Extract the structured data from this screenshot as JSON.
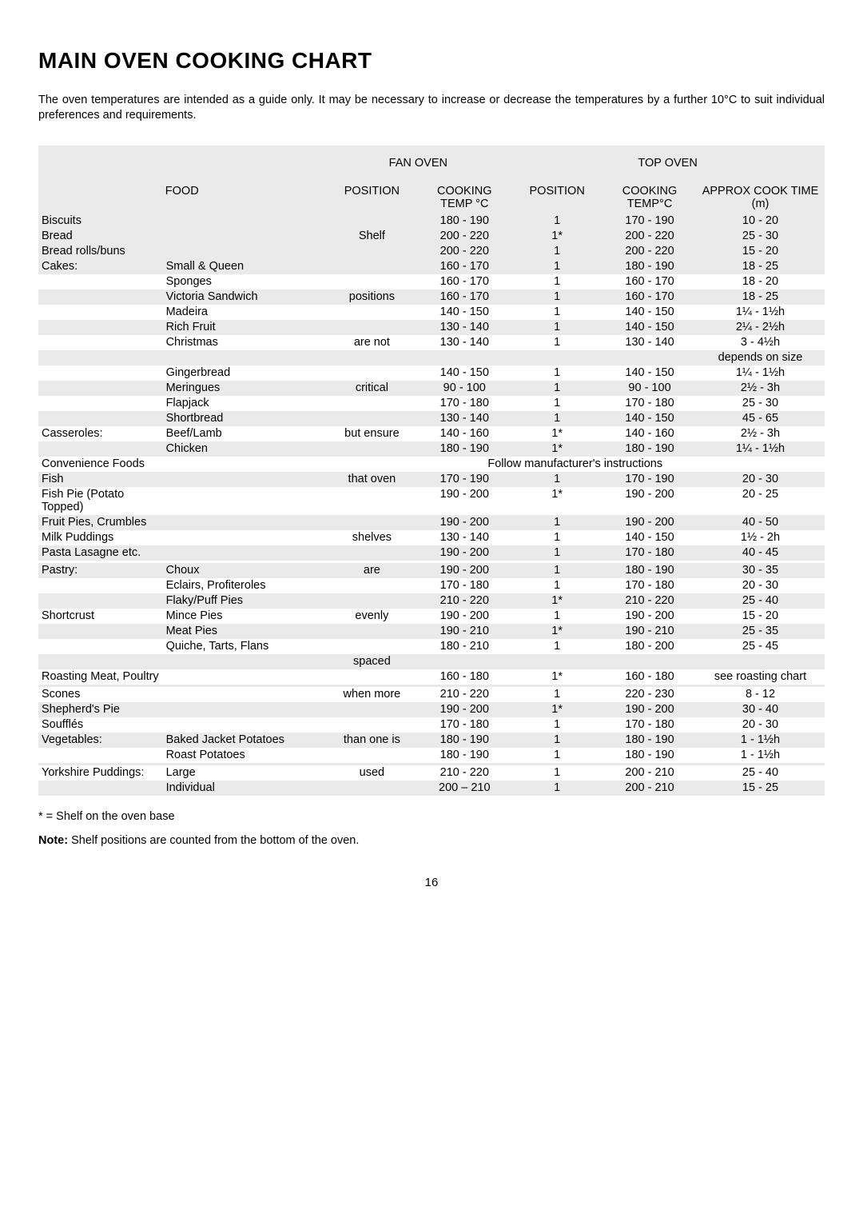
{
  "title": "MAIN OVEN COOKING CHART",
  "intro": "The oven temperatures are intended as a guide only.  It may be necessary to increase or decrease the temperatures by a further 10°C to suit individual preferences and requirements.",
  "headers": {
    "fan": "FAN OVEN",
    "top": "TOP OVEN",
    "food": "FOOD",
    "pos": "POSITION",
    "cooktemp": "COOKING TEMP °C",
    "cooktemp2": "COOKING TEMP°C",
    "approx": "APPROX COOK TIME (m)"
  },
  "position_words": [
    "Shelf",
    "",
    "positions",
    "",
    "",
    "are not",
    "",
    "",
    "critical",
    "",
    "",
    "but ensure",
    "",
    "",
    "that oven",
    "",
    "",
    "shelves",
    "",
    "",
    "are",
    "",
    "",
    "evenly",
    "",
    "",
    "spaced",
    "",
    "when more",
    "",
    "",
    "than one is",
    "",
    "",
    "used",
    ""
  ],
  "rows": [
    {
      "shade": true,
      "food": "Biscuits",
      "sub": "",
      "pos": "",
      "fan": "180 - 190",
      "tpos": "1",
      "ttemp": "170 - 190",
      "time": "10 - 20"
    },
    {
      "shade": true,
      "food": "Bread",
      "sub": "",
      "pos": "Shelf",
      "fan": "200 - 220",
      "tpos": "1*",
      "ttemp": "200 - 220",
      "time": "25 - 30"
    },
    {
      "shade": true,
      "food": "Bread rolls/buns",
      "sub": "",
      "pos": "",
      "fan": "200 - 220",
      "tpos": "1",
      "ttemp": "200 - 220",
      "time": "15 - 20"
    },
    {
      "shade": true,
      "food": "Cakes:",
      "sub": "Small & Queen",
      "pos": "",
      "fan": "160 - 170",
      "tpos": "1",
      "ttemp": "180 - 190",
      "time": "18 - 25"
    },
    {
      "shade": false,
      "food": "",
      "sub": "Sponges",
      "pos": "",
      "fan": "160 - 170",
      "tpos": "1",
      "ttemp": "160 - 170",
      "time": "18 - 20"
    },
    {
      "shade": true,
      "food": "",
      "sub": "Victoria Sandwich",
      "pos": "positions",
      "fan": "160 - 170",
      "tpos": "1",
      "ttemp": "160 - 170",
      "time": "18 - 25"
    },
    {
      "shade": false,
      "food": "",
      "sub": "Madeira",
      "pos": "",
      "fan": "140 - 150",
      "tpos": "1",
      "ttemp": "140 - 150",
      "time": "1¼ - 1½h"
    },
    {
      "shade": true,
      "food": "",
      "sub": "Rich Fruit",
      "pos": "",
      "fan": "130 - 140",
      "tpos": "1",
      "ttemp": "140 - 150",
      "time": "2¼ - 2½h"
    },
    {
      "shade": false,
      "food": "",
      "sub": "Christmas",
      "pos": "are not",
      "fan": "130 - 140",
      "tpos": "1",
      "ttemp": "130 - 140",
      "time": "3 - 4½h"
    },
    {
      "shade": true,
      "food": "",
      "sub": "",
      "pos": "",
      "fan": "",
      "tpos": "",
      "ttemp": "",
      "time": "depends on size"
    },
    {
      "shade": false,
      "food": "",
      "sub": "Gingerbread",
      "pos": "",
      "fan": "140 - 150",
      "tpos": "1",
      "ttemp": "140 - 150",
      "time": "1¼ - 1½h"
    },
    {
      "shade": true,
      "food": "",
      "sub": "Meringues",
      "pos": "critical",
      "fan": "90 - 100",
      "tpos": "1",
      "ttemp": "90 - 100",
      "time": "2½ - 3h"
    },
    {
      "shade": false,
      "food": "",
      "sub": "Flapjack",
      "pos": "",
      "fan": "170 - 180",
      "tpos": "1",
      "ttemp": "170 - 180",
      "time": "25 - 30"
    },
    {
      "shade": true,
      "food": "",
      "sub": "Shortbread",
      "pos": "",
      "fan": "130 - 140",
      "tpos": "1",
      "ttemp": "140 - 150",
      "time": "45 - 65"
    },
    {
      "shade": false,
      "food": "Casseroles:",
      "sub": "Beef/Lamb",
      "pos": "but ensure",
      "fan": "140 - 160",
      "tpos": "1*",
      "ttemp": "140 - 160",
      "time": "2½ - 3h"
    },
    {
      "shade": true,
      "food": "",
      "sub": "Chicken",
      "pos": "",
      "fan": "180 - 190",
      "tpos": "1*",
      "ttemp": "180 - 190",
      "time": "1¼ - 1½h"
    },
    {
      "shade": false,
      "food": "Convenience Foods",
      "sub": "",
      "pos": "",
      "fan": "",
      "tpos": "",
      "ttemp": "",
      "time": "",
      "span": "Follow manufacturer's instructions"
    },
    {
      "shade": true,
      "food": "Fish",
      "sub": "",
      "pos": "that oven",
      "fan": "170 - 190",
      "tpos": "1",
      "ttemp": "170 - 190",
      "time": "20 - 30"
    },
    {
      "shade": false,
      "food": "Fish Pie (Potato Topped)",
      "sub": "",
      "pos": "",
      "fan": "190 - 200",
      "tpos": "1*",
      "ttemp": "190 - 200",
      "time": "20 - 25"
    },
    {
      "shade": true,
      "food": "Fruit Pies, Crumbles",
      "sub": "",
      "pos": "",
      "fan": "190 - 200",
      "tpos": "1",
      "ttemp": "190 - 200",
      "time": "40 - 50"
    },
    {
      "shade": false,
      "food": "Milk Puddings",
      "sub": "",
      "pos": "shelves",
      "fan": "130 - 140",
      "tpos": "1",
      "ttemp": "140 - 150",
      "time": "1½ - 2h"
    },
    {
      "shade": true,
      "food": "Pasta Lasagne etc.",
      "sub": "",
      "pos": "",
      "fan": "190 - 200",
      "tpos": "1",
      "ttemp": "170 - 180",
      "time": "40 - 45"
    },
    {
      "shade": false,
      "food": "",
      "sub": "",
      "pos": "",
      "fan": "",
      "tpos": "",
      "ttemp": "",
      "time": ""
    },
    {
      "shade": true,
      "food": "Pastry:",
      "sub": "Choux",
      "pos": "are",
      "fan": "190 - 200",
      "tpos": "1",
      "ttemp": "180 - 190",
      "time": "30 - 35"
    },
    {
      "shade": false,
      "food": "",
      "sub": "Eclairs, Profiteroles",
      "pos": "",
      "fan": "170 - 180",
      "tpos": "1",
      "ttemp": "170 - 180",
      "time": "20 - 30"
    },
    {
      "shade": true,
      "food": "",
      "sub": "Flaky/Puff Pies",
      "pos": "",
      "fan": "210 - 220",
      "tpos": "1*",
      "ttemp": "210 - 220",
      "time": "25 - 40"
    },
    {
      "shade": false,
      "food": "Shortcrust",
      "sub": "Mince Pies",
      "pos": "evenly",
      "fan": "190 - 200",
      "tpos": "1",
      "ttemp": "190 - 200",
      "time": "15 - 20"
    },
    {
      "shade": true,
      "food": "",
      "sub": "Meat Pies",
      "pos": "",
      "fan": "190 - 210",
      "tpos": "1*",
      "ttemp": "190 - 210",
      "time": "25 - 35"
    },
    {
      "shade": false,
      "food": "",
      "sub": "Quiche, Tarts, Flans",
      "pos": "",
      "fan": "180 - 210",
      "tpos": "1",
      "ttemp": "180 - 200",
      "time": "25 - 45"
    },
    {
      "shade": true,
      "food": "",
      "sub": "",
      "pos": "spaced",
      "fan": "",
      "tpos": "",
      "ttemp": "",
      "time": ""
    },
    {
      "shade": false,
      "food": "Roasting Meat, Poultry",
      "sub": "",
      "pos": "",
      "fan": "160 - 180",
      "tpos": "1*",
      "ttemp": "160 - 180",
      "time": "see roasting chart"
    },
    {
      "shade": true,
      "food": "",
      "sub": "",
      "pos": "",
      "fan": "",
      "tpos": "",
      "ttemp": "",
      "time": ""
    },
    {
      "shade": false,
      "food": "Scones",
      "sub": "",
      "pos": "when more",
      "fan": "210 - 220",
      "tpos": "1",
      "ttemp": "220 - 230",
      "time": "8 - 12"
    },
    {
      "shade": true,
      "food": "Shepherd's Pie",
      "sub": "",
      "pos": "",
      "fan": "190 - 200",
      "tpos": "1*",
      "ttemp": "190 - 200",
      "time": "30 - 40"
    },
    {
      "shade": false,
      "food": "Soufflés",
      "sub": "",
      "pos": "",
      "fan": "170 - 180",
      "tpos": "1",
      "ttemp": "170 - 180",
      "time": "20 - 30"
    },
    {
      "shade": true,
      "food": "Vegetables:",
      "sub": "Baked Jacket Potatoes",
      "pos": "than one is",
      "fan": "180 - 190",
      "tpos": "1",
      "ttemp": "180 - 190",
      "time": "1 - 1½h"
    },
    {
      "shade": false,
      "food": "",
      "sub": "Roast Potatoes",
      "pos": "",
      "fan": "180 - 190",
      "tpos": "1",
      "ttemp": "180 - 190",
      "time": "1 - 1½h"
    },
    {
      "shade": true,
      "food": "",
      "sub": "",
      "pos": "",
      "fan": "",
      "tpos": "",
      "ttemp": "",
      "time": ""
    },
    {
      "shade": false,
      "food": "Yorkshire Puddings:",
      "sub": "Large",
      "pos": "used",
      "fan": "210 - 220",
      "tpos": "1",
      "ttemp": "200 - 210",
      "time": "25 - 40"
    },
    {
      "shade": true,
      "food": "",
      "sub": "Individual",
      "pos": "",
      "fan": "200 – 210",
      "tpos": "1",
      "ttemp": "200 - 210",
      "time": "15 - 25"
    }
  ],
  "footnote": "* = Shelf on the oven base",
  "note_label": "Note:",
  "note_text": "  Shelf positions are counted from the bottom of the oven.",
  "page": "16",
  "colors": {
    "shade": "#eaeaea",
    "text": "#000000",
    "bg": "#ffffff"
  }
}
